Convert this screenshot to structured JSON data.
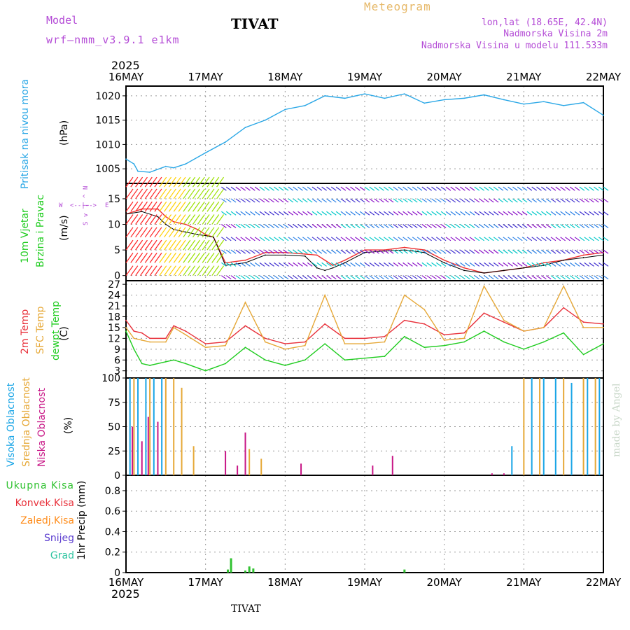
{
  "header": {
    "model_label": "Model",
    "model_name": "wrf—nmm_v3.9.1 e1km",
    "station": "TIVAT",
    "product": "Meteogram",
    "lonlat": "lon,lat (18.65E, 42.4N)",
    "elevation": "Nadmorska Visina 2m",
    "model_elevation": "Nadmorska Visina u modelu 111.533m",
    "watermark": "made by Angel",
    "footer_station": "TIVAT"
  },
  "axis_dates": {
    "year": "2025",
    "labels": [
      "16MAY",
      "17MAY",
      "18MAY",
      "19MAY",
      "20MAY",
      "21MAY",
      "22MAY"
    ]
  },
  "panel_labels": {
    "pressure": {
      "name": "Pritisak na nivou mora",
      "unit": "(hPa)"
    },
    "wind": {
      "name1": "10m Vjetar",
      "name2": "Brzina i Pravac",
      "unit": "(m/s)",
      "compass": [
        "W",
        "<--|-->",
        "E",
        "N",
        "^",
        "|",
        "v",
        "S"
      ]
    },
    "temp": {
      "name1": "2m Temp",
      "name2": "SFC Temp",
      "name3": "dewpt Temp",
      "unit": "(C)"
    },
    "cloud": {
      "name1": "Visoka Oblacnost",
      "name2": "Srednja Oblacnost",
      "name3": "Niska Oblacnost",
      "unit": "(%)"
    },
    "precip": {
      "legend": [
        "Ukupna Kisa",
        "Konvek.Kisa",
        "Zaledj.Kisa",
        "Snijeg",
        "Grad"
      ],
      "unit": "1hr Precip (mm)"
    }
  },
  "colors": {
    "pressure": "#2aa7e6",
    "temp2m": "#e8303a",
    "sfc": "#e6a837",
    "dewpt": "#1fcc1f",
    "cloud_high": "#19a5e6",
    "cloud_mid": "#e6a837",
    "cloud_low": "#c71585",
    "precip_total": "#31c231",
    "precip_conv": "#e8303a",
    "precip_freez": "#ff8c1a",
    "precip_snow": "#5a3ccf",
    "precip_hail": "#2ec4a0",
    "model": "#b44cd6",
    "grid": "#999999"
  },
  "chart_data": [
    {
      "type": "line",
      "panel": "pressure",
      "ylim": [
        1002,
        1022
      ],
      "yticks": [
        1005,
        1010,
        1015,
        1020
      ],
      "x": [
        0,
        0.1,
        0.15,
        0.3,
        0.5,
        0.6,
        0.75,
        1.0,
        1.25,
        1.5,
        1.75,
        2.0,
        2.25,
        2.5,
        2.75,
        3.0,
        3.25,
        3.5,
        3.75,
        4.0,
        4.25,
        4.5,
        4.75,
        5.0,
        5.25,
        5.5,
        5.75,
        6.0
      ],
      "series": [
        {
          "values": [
            1007,
            1006,
            1004.5,
            1004.3,
            1005.5,
            1005.2,
            1006,
            1008.3,
            1010.5,
            1013.5,
            1015,
            1017.2,
            1018,
            1020,
            1019.5,
            1020.4,
            1019.5,
            1020.4,
            1018.5,
            1019.2,
            1019.5,
            1020.2,
            1019.2,
            1018.3,
            1018.8,
            1018,
            1018.6,
            1016
          ]
        }
      ]
    },
    {
      "type": "line",
      "panel": "wind",
      "ylim": [
        -1,
        18
      ],
      "yticks": [
        0,
        5,
        10,
        15
      ],
      "x": [
        0,
        0.2,
        0.4,
        0.5,
        0.6,
        0.75,
        0.9,
        1.0,
        1.1,
        1.25,
        1.5,
        1.75,
        2.0,
        2.25,
        2.4,
        2.5,
        2.6,
        2.75,
        3.0,
        3.25,
        3.5,
        3.75,
        4.0,
        4.25,
        4.5,
        4.75,
        5.0,
        5.25,
        5.5,
        5.75,
        6.0
      ],
      "series": [
        {
          "values": [
            12,
            13,
            13,
            11.5,
            10.5,
            10,
            9,
            8,
            7.5,
            2.5,
            3,
            4.5,
            4.5,
            4.2,
            4,
            3,
            2,
            3,
            5,
            5,
            5.5,
            5,
            3,
            1.5,
            0.5,
            1,
            1.5,
            2.5,
            3,
            4,
            4.5
          ]
        },
        {
          "values": [
            12,
            12.5,
            11.5,
            10,
            9,
            8.5,
            8,
            7.8,
            7.5,
            2,
            2.5,
            4,
            4,
            3.8,
            1.5,
            1,
            1.5,
            2.5,
            4.5,
            4.8,
            5,
            4.5,
            2.5,
            1,
            0.5,
            1,
            1.5,
            2,
            3,
            3.5,
            4
          ]
        }
      ]
    },
    {
      "type": "line",
      "panel": "temp",
      "ylim": [
        1,
        28
      ],
      "yticks": [
        3,
        6,
        9,
        12,
        15,
        18,
        21,
        24,
        27
      ],
      "x": [
        0,
        0.1,
        0.2,
        0.3,
        0.5,
        0.6,
        0.75,
        1.0,
        1.25,
        1.5,
        1.75,
        2.0,
        2.25,
        2.5,
        2.75,
        3.0,
        3.25,
        3.5,
        3.75,
        4.0,
        4.25,
        4.5,
        4.75,
        5.0,
        5.25,
        5.5,
        5.75,
        6.0
      ],
      "series": [
        {
          "name": "2m Temp",
          "values": [
            17,
            14,
            13.5,
            12,
            12,
            15.5,
            14,
            10.5,
            11,
            15.5,
            12,
            10.5,
            11,
            16,
            12,
            12,
            12.5,
            17,
            16,
            13,
            13.5,
            19,
            16.5,
            14,
            15,
            20.5,
            16.5,
            16
          ]
        },
        {
          "name": "SFC Temp",
          "values": [
            15,
            12,
            11.5,
            11,
            11,
            15,
            13,
            9.5,
            10,
            22,
            11,
            9,
            10,
            24,
            10.5,
            10.5,
            11,
            24,
            20,
            11.5,
            12,
            26.5,
            17,
            14,
            15,
            26.5,
            15,
            15
          ]
        },
        {
          "name": "dewpt Temp",
          "values": [
            14,
            9,
            5,
            4.5,
            5.5,
            6,
            5,
            3,
            5,
            9.5,
            6,
            4.5,
            6,
            10.5,
            6,
            6.5,
            7,
            12.5,
            9.5,
            10,
            11,
            14,
            11,
            9,
            11,
            13.5,
            7.5,
            10.5
          ]
        }
      ]
    },
    {
      "type": "bar",
      "panel": "cloud",
      "ylim": [
        0,
        100
      ],
      "yticks": [
        0,
        25,
        50,
        75,
        100
      ],
      "series": [
        {
          "name": "Visoka Oblacnost",
          "x": [
            0.05,
            0.15,
            0.25,
            0.35,
            0.45,
            4.85,
            5.1,
            5.25,
            5.4,
            5.6,
            5.8,
            5.95
          ],
          "values": [
            100,
            100,
            100,
            100,
            100,
            30,
            100,
            100,
            100,
            95,
            100,
            100
          ]
        },
        {
          "name": "Srednja Oblacnost",
          "x": [
            0.1,
            0.3,
            0.5,
            0.6,
            0.7,
            0.85,
            1.5,
            1.55,
            1.7,
            5.0,
            5.2,
            5.5,
            5.75,
            5.9
          ],
          "values": [
            100,
            100,
            100,
            100,
            90,
            30,
            40,
            27,
            17,
            100,
            100,
            100,
            100,
            100
          ]
        },
        {
          "name": "Niska Oblacnost",
          "x": [
            0.08,
            0.2,
            0.28,
            0.4,
            1.25,
            1.4,
            1.5,
            2.2,
            3.1,
            3.35,
            4.6,
            4.75
          ],
          "values": [
            50,
            35,
            60,
            55,
            25,
            10,
            44,
            12,
            10,
            20,
            2,
            2
          ]
        }
      ]
    },
    {
      "type": "bar",
      "panel": "precip",
      "ylim": [
        0,
        0.95
      ],
      "yticks": [
        0,
        0.2,
        0.4,
        0.6,
        0.8
      ],
      "series": [
        {
          "name": "Ukupna Kisa",
          "x": [
            1.28,
            1.32,
            1.5,
            1.55,
            1.6,
            3.5
          ],
          "values": [
            0.03,
            0.14,
            0.02,
            0.06,
            0.04,
            0.03
          ]
        }
      ]
    }
  ]
}
